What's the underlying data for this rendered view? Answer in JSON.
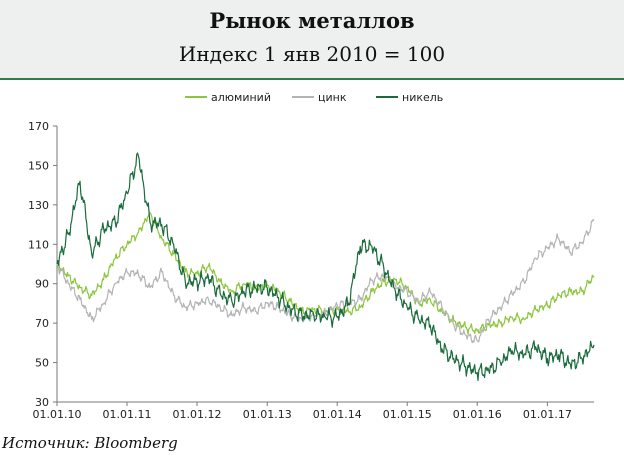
{
  "header": {
    "title": "Рынок металлов",
    "subtitle": "Индекс 1 янв 2010 = 100"
  },
  "source": "Источник: Bloomberg",
  "chart_data": {
    "type": "line",
    "title": "Рынок металлов",
    "subtitle": "Индекс 1 янв 2010 = 100",
    "xlabel": "",
    "ylabel": "",
    "ylim": [
      30,
      170
    ],
    "yticks": [
      30,
      50,
      70,
      90,
      110,
      130,
      150,
      170
    ],
    "xticks": [
      "01.01.10",
      "01.01.11",
      "01.01.12",
      "01.01.13",
      "01.01.14",
      "01.01.15",
      "01.01.16",
      "01.01.17"
    ],
    "x_range": [
      "01.01.10",
      "01.09.17"
    ],
    "grid": false,
    "legend_position": "top-center",
    "series": [
      {
        "name": "алюминий",
        "color": "#8cc63f",
        "points": [
          [
            "01.01.10",
            100
          ],
          [
            "01.03.10",
            94
          ],
          [
            "01.05.10",
            88
          ],
          [
            "01.07.10",
            84
          ],
          [
            "01.09.10",
            92
          ],
          [
            "01.11.10",
            103
          ],
          [
            "01.01.11",
            110
          ],
          [
            "01.03.11",
            116
          ],
          [
            "01.05.11",
            126
          ],
          [
            "01.07.11",
            113
          ],
          [
            "01.09.11",
            105
          ],
          [
            "01.11.11",
            96
          ],
          [
            "01.01.12",
            95
          ],
          [
            "01.03.12",
            99
          ],
          [
            "01.05.12",
            91
          ],
          [
            "01.07.12",
            86
          ],
          [
            "01.09.12",
            90
          ],
          [
            "01.11.12",
            88
          ],
          [
            "01.01.13",
            89
          ],
          [
            "01.03.13",
            86
          ],
          [
            "01.05.13",
            81
          ],
          [
            "01.07.13",
            76
          ],
          [
            "01.09.13",
            77
          ],
          [
            "01.11.13",
            76
          ],
          [
            "01.01.14",
            77
          ],
          [
            "01.03.14",
            76
          ],
          [
            "01.05.14",
            78
          ],
          [
            "01.07.14",
            86
          ],
          [
            "01.09.14",
            91
          ],
          [
            "01.11.14",
            92
          ],
          [
            "01.01.15",
            88
          ],
          [
            "01.03.15",
            80
          ],
          [
            "01.05.15",
            82
          ],
          [
            "01.07.15",
            76
          ],
          [
            "01.09.15",
            71
          ],
          [
            "01.11.15",
            68
          ],
          [
            "01.01.16",
            66
          ],
          [
            "01.03.16",
            69
          ],
          [
            "01.05.16",
            70
          ],
          [
            "01.07.16",
            73
          ],
          [
            "01.09.16",
            72
          ],
          [
            "01.11.16",
            77
          ],
          [
            "01.01.17",
            79
          ],
          [
            "01.03.17",
            84
          ],
          [
            "01.05.17",
            86
          ],
          [
            "01.07.17",
            86
          ],
          [
            "01.09.17",
            94
          ]
        ]
      },
      {
        "name": "цинк",
        "color": "#b4b4b4",
        "points": [
          [
            "01.01.10",
            100
          ],
          [
            "01.03.10",
            90
          ],
          [
            "01.05.10",
            82
          ],
          [
            "01.07.10",
            72
          ],
          [
            "01.09.10",
            80
          ],
          [
            "01.11.10",
            90
          ],
          [
            "01.01.11",
            96
          ],
          [
            "01.03.11",
            95
          ],
          [
            "01.05.11",
            88
          ],
          [
            "01.07.11",
            96
          ],
          [
            "01.09.11",
            84
          ],
          [
            "01.11.11",
            78
          ],
          [
            "01.01.12",
            80
          ],
          [
            "01.03.12",
            82
          ],
          [
            "01.05.12",
            78
          ],
          [
            "01.07.12",
            74
          ],
          [
            "01.09.12",
            78
          ],
          [
            "01.11.12",
            76
          ],
          [
            "01.01.13",
            80
          ],
          [
            "01.03.13",
            78
          ],
          [
            "01.05.13",
            74
          ],
          [
            "01.07.13",
            72
          ],
          [
            "01.09.13",
            74
          ],
          [
            "01.11.13",
            75
          ],
          [
            "01.01.14",
            79
          ],
          [
            "01.03.14",
            80
          ],
          [
            "01.05.14",
            82
          ],
          [
            "01.07.14",
            92
          ],
          [
            "01.09.14",
            94
          ],
          [
            "01.11.14",
            89
          ],
          [
            "01.01.15",
            86
          ],
          [
            "01.03.15",
            81
          ],
          [
            "01.05.15",
            86
          ],
          [
            "01.07.15",
            78
          ],
          [
            "01.09.15",
            69
          ],
          [
            "01.11.15",
            64
          ],
          [
            "01.01.16",
            61
          ],
          [
            "01.03.16",
            72
          ],
          [
            "01.05.16",
            78
          ],
          [
            "01.07.16",
            85
          ],
          [
            "01.09.16",
            91
          ],
          [
            "01.11.16",
            103
          ],
          [
            "01.01.17",
            108
          ],
          [
            "01.03.17",
            113
          ],
          [
            "01.05.17",
            106
          ],
          [
            "01.07.17",
            111
          ],
          [
            "01.09.17",
            122
          ]
        ]
      },
      {
        "name": "никель",
        "color": "#1a6b3c",
        "points": [
          [
            "01.01.10",
            100
          ],
          [
            "01.03.10",
            115
          ],
          [
            "01.05.10",
            142
          ],
          [
            "01.07.10",
            105
          ],
          [
            "01.09.10",
            118
          ],
          [
            "01.11.10",
            121
          ],
          [
            "01.01.11",
            136
          ],
          [
            "01.03.11",
            155
          ],
          [
            "01.05.11",
            121
          ],
          [
            "01.07.11",
            120
          ],
          [
            "01.09.11",
            110
          ],
          [
            "01.11.11",
            91
          ],
          [
            "01.01.12",
            91
          ],
          [
            "01.03.12",
            93
          ],
          [
            "01.05.12",
            85
          ],
          [
            "01.07.12",
            81
          ],
          [
            "01.09.12",
            86
          ],
          [
            "01.11.12",
            88
          ],
          [
            "01.01.13",
            88
          ],
          [
            "01.03.13",
            83
          ],
          [
            "01.05.13",
            77
          ],
          [
            "01.07.13",
            74
          ],
          [
            "01.09.13",
            74
          ],
          [
            "01.11.13",
            73
          ],
          [
            "01.01.14",
            73
          ],
          [
            "01.03.14",
            80
          ],
          [
            "01.05.14",
            109
          ],
          [
            "01.07.14",
            109
          ],
          [
            "01.09.14",
            98
          ],
          [
            "01.11.14",
            86
          ],
          [
            "01.01.15",
            78
          ],
          [
            "01.03.15",
            72
          ],
          [
            "01.05.15",
            69
          ],
          [
            "01.07.15",
            57
          ],
          [
            "01.09.15",
            52
          ],
          [
            "01.11.15",
            48
          ],
          [
            "01.01.16",
            45
          ],
          [
            "01.03.16",
            46
          ],
          [
            "01.05.16",
            50
          ],
          [
            "01.07.16",
            56
          ],
          [
            "01.09.16",
            54
          ],
          [
            "01.11.16",
            58
          ],
          [
            "01.01.17",
            52
          ],
          [
            "01.03.17",
            54
          ],
          [
            "01.05.17",
            49
          ],
          [
            "01.07.17",
            52
          ],
          [
            "01.09.17",
            59
          ]
        ]
      }
    ]
  }
}
